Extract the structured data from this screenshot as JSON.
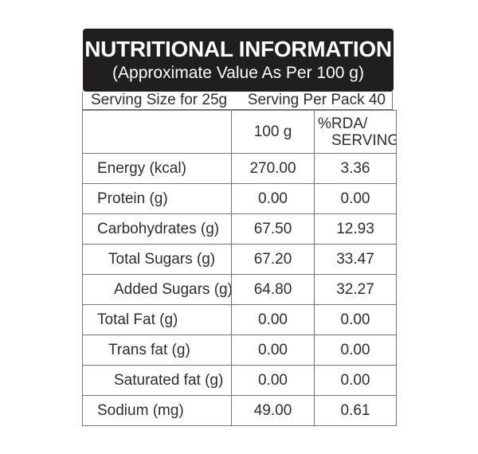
{
  "label": {
    "title": "NUTRITIONAL INFORMATION",
    "subtitle": "(Approximate Value As Per 100 g)",
    "serving_size": "Serving Size for 25g",
    "serving_per_pack": "Serving Per Pack 40",
    "columns": {
      "amount": "100 g",
      "rda_line1": "%RDA/",
      "rda_line2": "SERVING"
    },
    "rows": [
      {
        "label": "Energy (kcal)",
        "amount": "270.00",
        "rda": "3.36",
        "indent": 0
      },
      {
        "label": "Protein (g)",
        "amount": "0.00",
        "rda": "0.00",
        "indent": 0
      },
      {
        "label": "Carbohydrates (g)",
        "amount": "67.50",
        "rda": "12.93",
        "indent": 0
      },
      {
        "label": "Total Sugars (g)",
        "amount": "67.20",
        "rda": "33.47",
        "indent": 1
      },
      {
        "label": "Added Sugars (g)",
        "amount": "64.80",
        "rda": "32.27",
        "indent": 2
      },
      {
        "label": "Total Fat (g)",
        "amount": "0.00",
        "rda": "0.00",
        "indent": 0
      },
      {
        "label": "Trans fat (g)",
        "amount": "0.00",
        "rda": "0.00",
        "indent": 1
      },
      {
        "label": "Saturated fat (g)",
        "amount": "0.00",
        "rda": "0.00",
        "indent": 2
      },
      {
        "label": "Sodium (mg)",
        "amount": "49.00",
        "rda": "0.61",
        "indent": 0
      }
    ],
    "colors": {
      "header_bg": "#211e1f",
      "header_text": "#ffffff",
      "body_text": "#2e2c2d",
      "border": "#757575",
      "page_bg": "#ffffff"
    }
  }
}
